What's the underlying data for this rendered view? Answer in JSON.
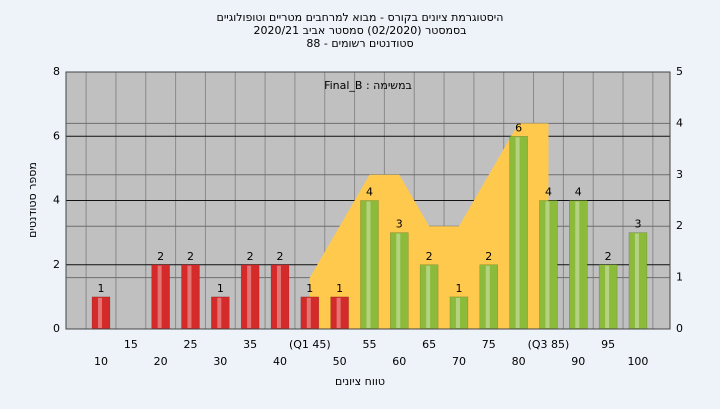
{
  "chart_data": {
    "type": "bar",
    "title": [
      "היסטוגרמת ציונים בקורס - מבוא למרחבים מטריים וטופולוגיים",
      "בסמסטר  (02/2020)  סמסטר אביב 2020/21",
      "סטודנטים רשומים - 88"
    ],
    "annotation": "Final_B : במשימה",
    "ylabel": "מספר סטודנטים",
    "xlabel": "טווח ציונים",
    "categories": [
      "10",
      "15",
      "20",
      "25",
      "30",
      "35",
      "40",
      "(Q1 45)",
      "50",
      "55",
      "60",
      "65",
      "70",
      "75",
      "80",
      "(Q3 85)",
      "90",
      "95",
      "100"
    ],
    "values": [
      1,
      0,
      2,
      2,
      1,
      2,
      2,
      1,
      1,
      4,
      3,
      2,
      1,
      2,
      6,
      4,
      4,
      2,
      3
    ],
    "colors": [
      "#d42a2a",
      "#d42a2a",
      "#d42a2a",
      "#d42a2a",
      "#d42a2a",
      "#d42a2a",
      "#d42a2a",
      "#d42a2a",
      "#d42a2a",
      "#8cbb3c",
      "#8cbb3c",
      "#8cbb3c",
      "#8cbb3c",
      "#8cbb3c",
      "#8cbb3c",
      "#8cbb3c",
      "#8cbb3c",
      "#8cbb3c",
      "#8cbb3c"
    ],
    "area": {
      "axis": "y2",
      "color": "#ffc94d",
      "values": [
        null,
        null,
        null,
        null,
        null,
        null,
        null,
        1,
        2,
        3,
        3,
        2,
        2,
        3,
        4,
        4,
        null,
        null,
        null
      ]
    },
    "ylim": [
      0,
      8
    ],
    "yticks": [
      0,
      2,
      4,
      6,
      8
    ],
    "y2lim": [
      0,
      5
    ],
    "y2ticks": [
      0,
      1,
      2,
      3,
      4,
      5
    ],
    "grid": true
  }
}
